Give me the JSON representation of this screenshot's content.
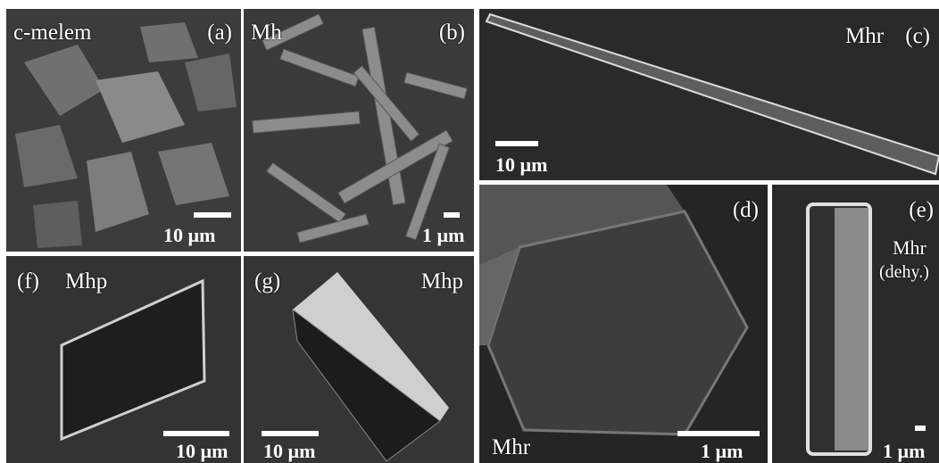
{
  "figure": {
    "panels": [
      {
        "id": "a",
        "letter": "(a)",
        "sample": "c-melem",
        "scale": "10 µm"
      },
      {
        "id": "b",
        "letter": "(b)",
        "sample": "Mh",
        "scale": "1 µm"
      },
      {
        "id": "c",
        "letter": "(c)",
        "sample": "Mhr",
        "scale": "10 µm"
      },
      {
        "id": "d",
        "letter": "(d)",
        "sample": "Mhr",
        "scale": "1 µm"
      },
      {
        "id": "e",
        "letter": "(e)",
        "sample": "Mhr",
        "sample_note": "(dehy.)",
        "scale": "1 µm"
      },
      {
        "id": "f",
        "letter": "(f)",
        "sample": "Mhp",
        "scale": "10 µm"
      },
      {
        "id": "g",
        "letter": "(g)",
        "sample": "Mhp",
        "scale": "10 µm"
      }
    ],
    "colors": {
      "background": "#2b2b2b",
      "text": "#ffffff",
      "divider": "#ffffff"
    }
  }
}
